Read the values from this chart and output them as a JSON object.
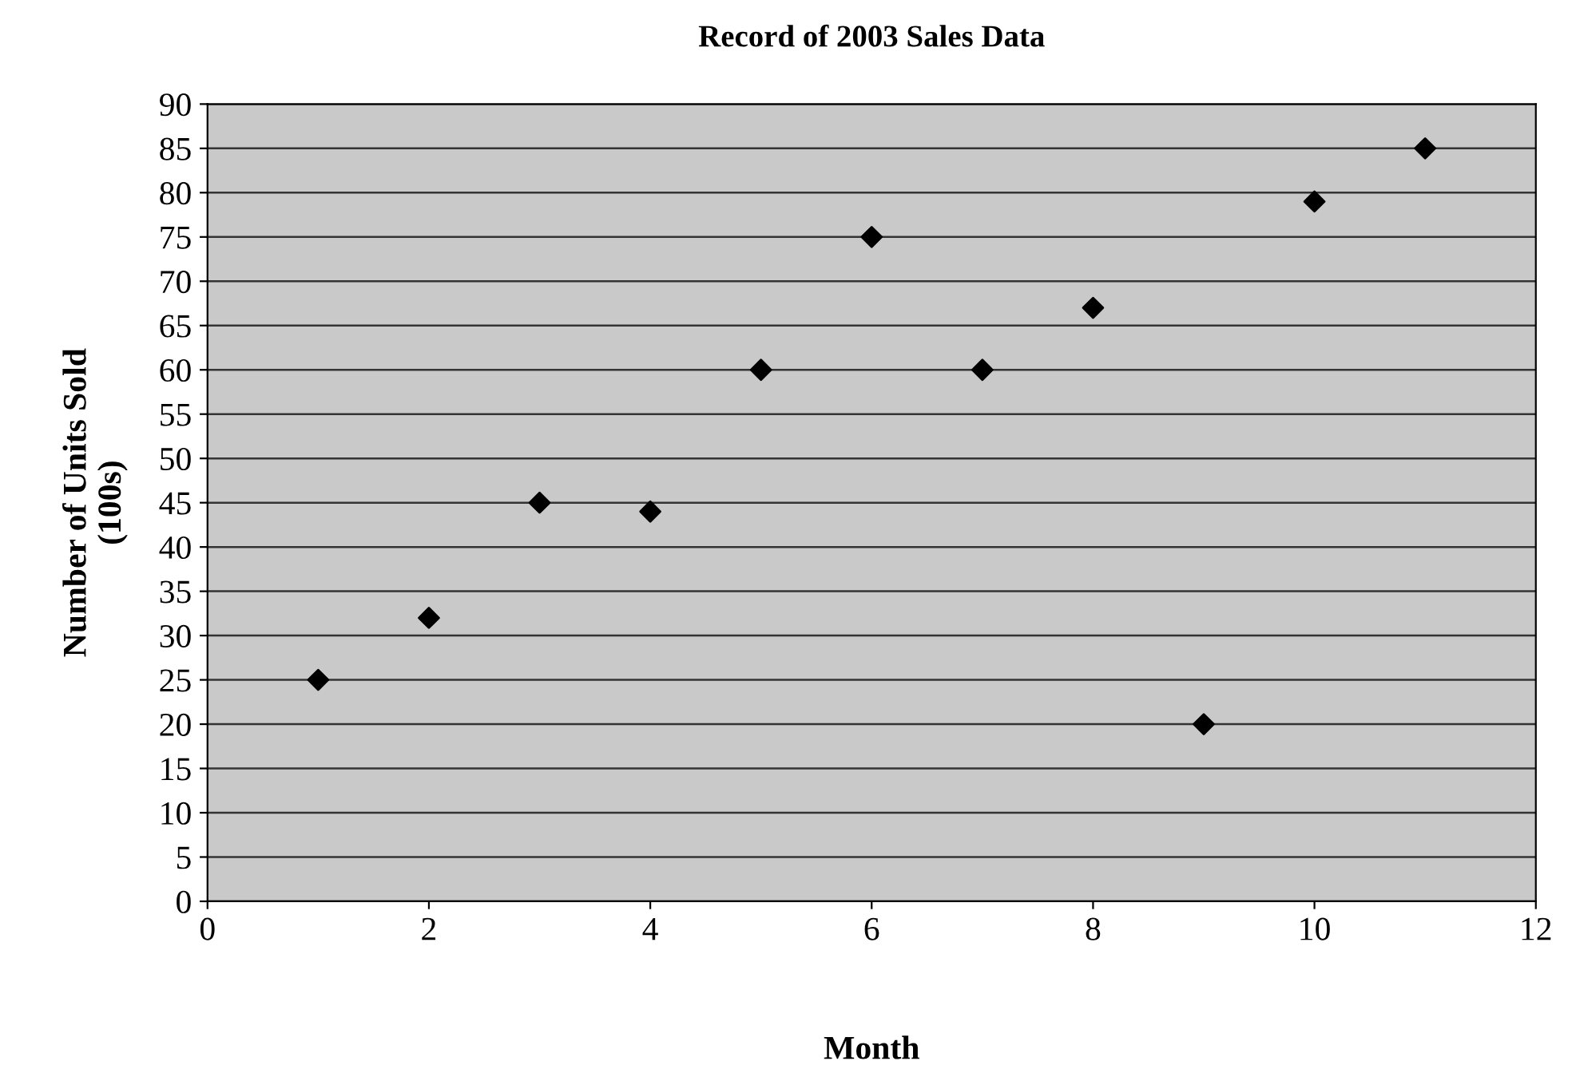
{
  "chart_data": {
    "type": "scatter",
    "title": "Record of 2003 Sales Data",
    "xlabel": "Month",
    "ylabel": "Number of Units Sold\n(100s)",
    "x": [
      1,
      2,
      3,
      4,
      5,
      6,
      7,
      8,
      9,
      10,
      11
    ],
    "values": [
      25,
      32,
      45,
      44,
      60,
      75,
      60,
      67,
      20,
      79,
      85
    ],
    "color": "#000000",
    "marker": "diamond",
    "xlim": [
      0,
      12
    ],
    "xticks": [
      0,
      2,
      4,
      6,
      8,
      10,
      12
    ],
    "ylim": [
      0,
      90
    ],
    "yticks": [
      0,
      5,
      10,
      15,
      20,
      25,
      30,
      35,
      40,
      45,
      50,
      55,
      60,
      65,
      70,
      75,
      80,
      85,
      90
    ],
    "grid": "y",
    "legend": false
  }
}
